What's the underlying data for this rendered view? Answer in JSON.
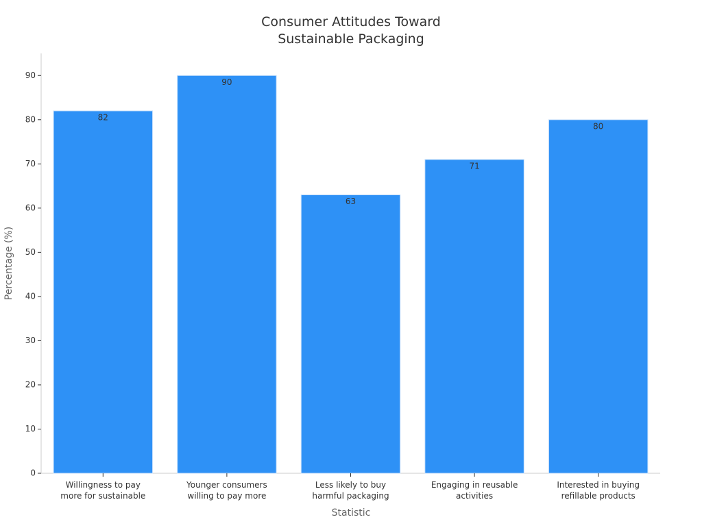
{
  "chart_data": {
    "type": "bar",
    "title": "Consumer Attitudes Toward Sustainable Packaging",
    "x_label": "Statistic",
    "y_label": "Percentage (%)",
    "categories": [
      "Willingness to pay more for sustainable",
      "Younger consumers willing to pay more",
      "Less likely to buy harmful packaging",
      "Engaging in reusable activities",
      "Interested in buying refillable products"
    ],
    "values": [
      82,
      90,
      63,
      71,
      80
    ],
    "color": "#2e91f6",
    "ylim": [
      0,
      95
    ],
    "yticks": [
      0,
      10,
      20,
      30,
      40,
      50,
      60,
      70,
      80,
      90
    ],
    "grid": false,
    "data_labels": true
  }
}
